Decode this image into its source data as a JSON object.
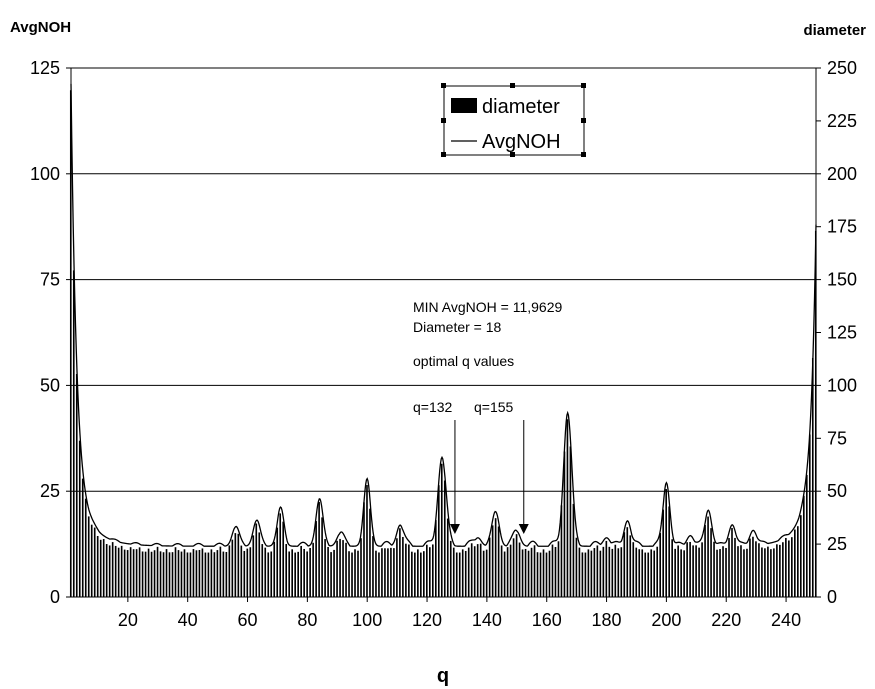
{
  "chart_data": {
    "type": "bar+line",
    "xlabel": "q",
    "ylabel_left": "AvgNOH",
    "ylabel_right": "diameter",
    "xlim": [
      1,
      250
    ],
    "ylim_left": [
      0,
      125
    ],
    "ylim_right": [
      0,
      250
    ],
    "x_ticks": [
      20,
      40,
      60,
      80,
      100,
      120,
      140,
      160,
      180,
      200,
      220,
      240
    ],
    "y_left_ticks": [
      0,
      25,
      50,
      75,
      100,
      125
    ],
    "y_right_ticks": [
      0,
      25,
      50,
      75,
      100,
      125,
      150,
      175,
      200,
      225,
      250
    ],
    "grid": "horizontal major gridlines",
    "legend": {
      "placement": "top-center",
      "entries": [
        {
          "label": "diameter",
          "kind": "bar",
          "color": "#000000"
        },
        {
          "label": "AvgNOH",
          "kind": "line",
          "color": "#000000"
        }
      ]
    },
    "series": [
      {
        "name": "diameter",
        "axis": "right",
        "kind": "bar",
        "color": "#000000"
      },
      {
        "name": "AvgNOH",
        "axis": "left",
        "kind": "line",
        "color": "#000000"
      }
    ],
    "baseline_left": 12,
    "peaks_left": [
      {
        "x": 56,
        "y": 16.5
      },
      {
        "x": 63,
        "y": 18
      },
      {
        "x": 71,
        "y": 20.5
      },
      {
        "x": 84,
        "y": 23
      },
      {
        "x": 91,
        "y": 15
      },
      {
        "x": 100,
        "y": 27
      },
      {
        "x": 111,
        "y": 17
      },
      {
        "x": 125,
        "y": 33
      },
      {
        "x": 137,
        "y": 14
      },
      {
        "x": 143,
        "y": 20
      },
      {
        "x": 150,
        "y": 15.5
      },
      {
        "x": 167,
        "y": 43.5
      },
      {
        "x": 180,
        "y": 14
      },
      {
        "x": 187,
        "y": 18
      },
      {
        "x": 200,
        "y": 27
      },
      {
        "x": 208,
        "y": 14.5
      },
      {
        "x": 214,
        "y": 20.5
      },
      {
        "x": 222,
        "y": 17
      },
      {
        "x": 229,
        "y": 15.5
      }
    ],
    "annotations": {
      "line1": "MIN AvgNOH = 11,9629",
      "line2": "Diameter = 18",
      "line3": "optimal q values",
      "arrow1": {
        "label": "q=132",
        "x": 132
      },
      "arrow2": {
        "label": "q=155",
        "x": 155
      }
    }
  }
}
